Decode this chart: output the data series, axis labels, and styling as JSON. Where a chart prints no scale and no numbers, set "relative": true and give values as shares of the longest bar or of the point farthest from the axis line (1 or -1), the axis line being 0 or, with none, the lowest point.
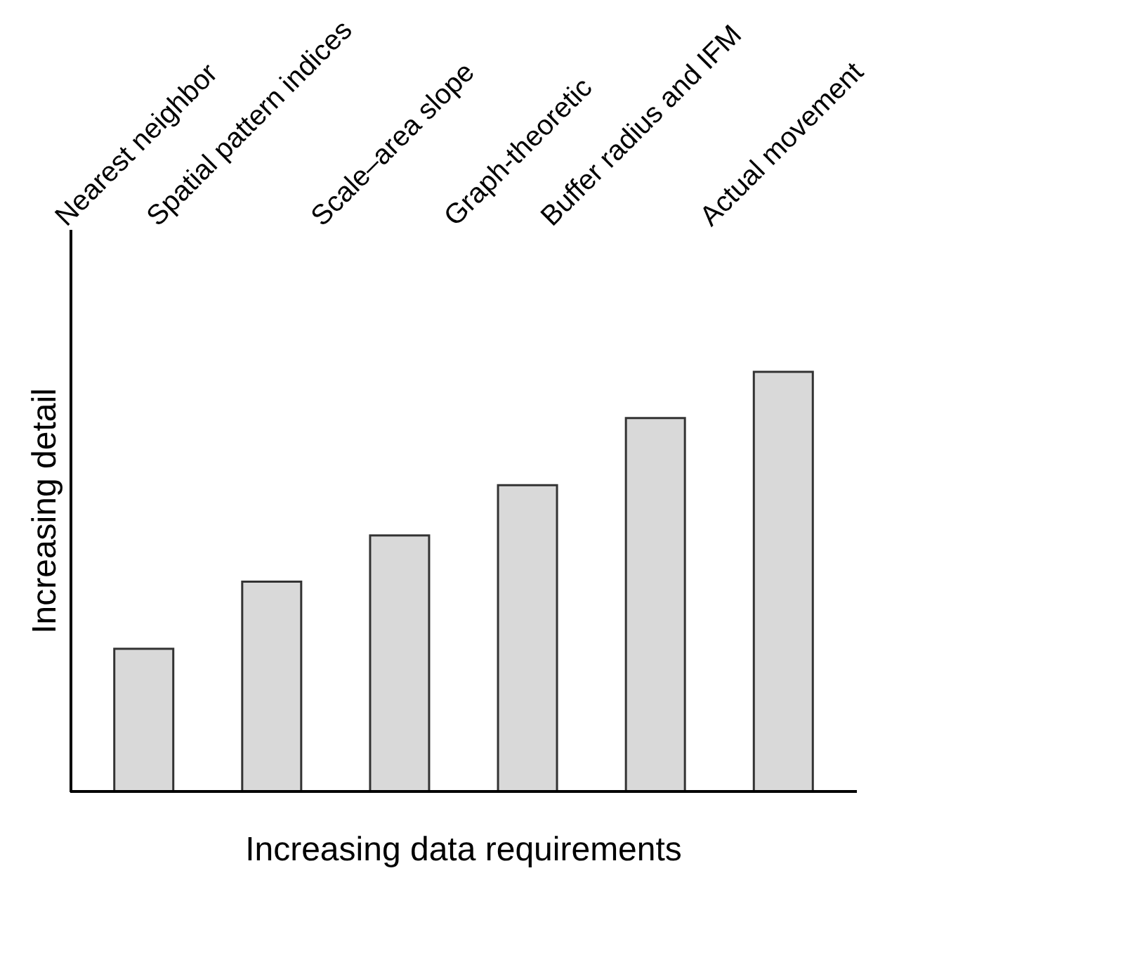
{
  "chart_data": {
    "type": "bar",
    "relative": true,
    "categories": [
      "Nearest neighbor",
      "Spatial pattern indices",
      "Scale–area slope",
      "Graph-theoretic",
      "Buffer radius and IFM",
      "Actual movement"
    ],
    "values": [
      0.34,
      0.5,
      0.61,
      0.73,
      0.89,
      1.0
    ],
    "color": "#d9d9d9",
    "xlabel": "Increasing data requirements",
    "ylabel": "Increasing detail",
    "grid": false
  }
}
